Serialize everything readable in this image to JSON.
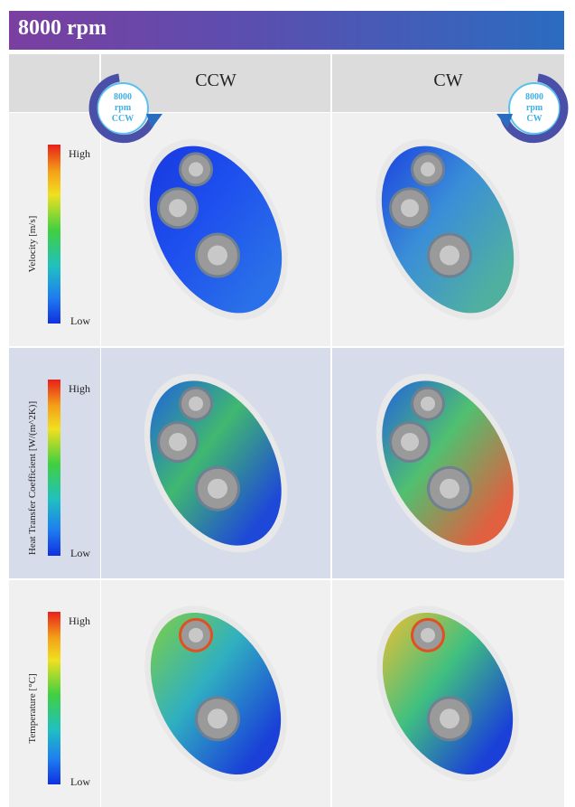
{
  "header": {
    "title": "8000 rpm"
  },
  "columns": [
    "CCW",
    "CW"
  ],
  "badges": [
    {
      "lines": [
        "8000",
        "rpm",
        "CCW"
      ]
    },
    {
      "lines": [
        "8000",
        "rpm",
        "CW"
      ]
    }
  ],
  "rows": [
    {
      "label": "Velocity [m/s]",
      "high": "High",
      "low": "Low"
    },
    {
      "label": "Heat Transfer Coefficient [W/(m^2K)]",
      "high": "High",
      "low": "Low"
    },
    {
      "label": "Temperature [°C]",
      "high": "High",
      "low": "Low"
    }
  ]
}
